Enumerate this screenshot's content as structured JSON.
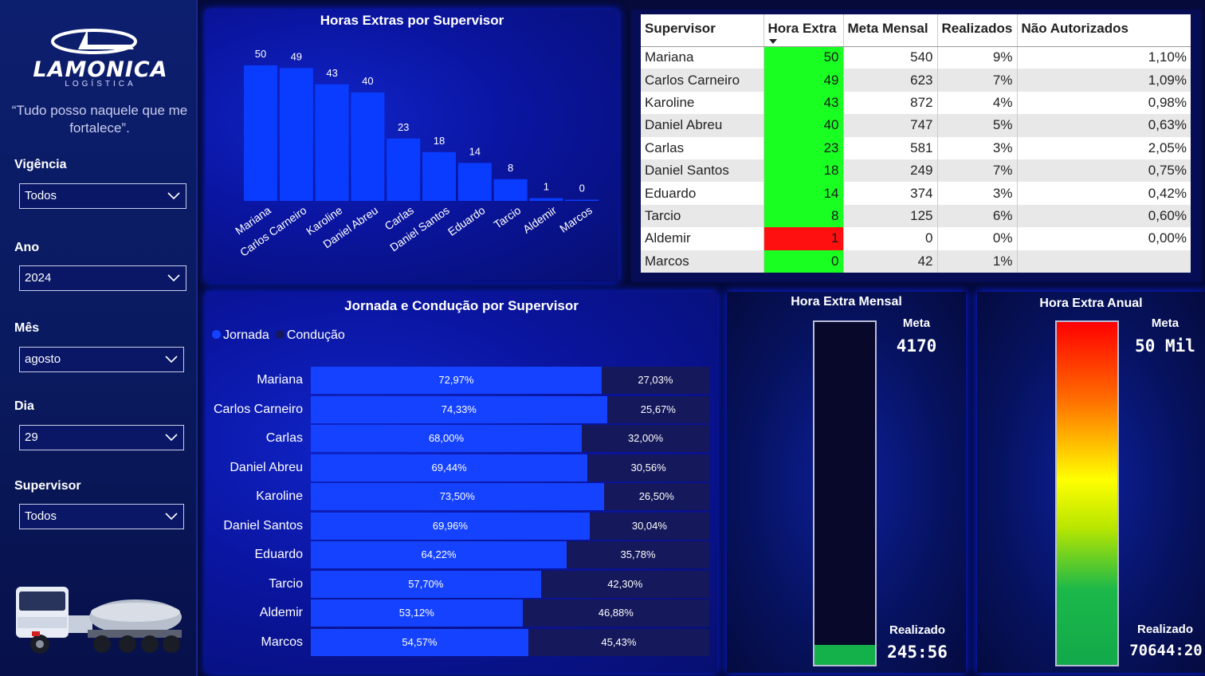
{
  "brand": {
    "name": "LAMONICA",
    "subtitle": "LOGÍSTICA",
    "motto": "“Tudo posso naquele que me fortalece”."
  },
  "filters": [
    {
      "label": "Vigência",
      "value": "Todos"
    },
    {
      "label": "Ano",
      "value": "2024"
    },
    {
      "label": "Mês",
      "value": "agosto"
    },
    {
      "label": "Dia",
      "value": "29"
    },
    {
      "label": "Supervisor",
      "value": "Todos"
    }
  ],
  "bar_chart_title": "Horas Extras por Supervisor",
  "table": {
    "headers": [
      "Supervisor",
      "Hora Extra",
      "Meta Mensal",
      "Realizados",
      "Não Autorizados"
    ],
    "rows": [
      {
        "supervisor": "Mariana",
        "hora_extra": "50",
        "meta": "540",
        "realizados": "9%",
        "nao_aut": "1,10%",
        "status": "green"
      },
      {
        "supervisor": "Carlos Carneiro",
        "hora_extra": "49",
        "meta": "623",
        "realizados": "7%",
        "nao_aut": "1,09%",
        "status": "green"
      },
      {
        "supervisor": "Karoline",
        "hora_extra": "43",
        "meta": "872",
        "realizados": "4%",
        "nao_aut": "0,98%",
        "status": "green"
      },
      {
        "supervisor": "Daniel Abreu",
        "hora_extra": "40",
        "meta": "747",
        "realizados": "5%",
        "nao_aut": "0,63%",
        "status": "green"
      },
      {
        "supervisor": "Carlas",
        "hora_extra": "23",
        "meta": "581",
        "realizados": "3%",
        "nao_aut": "2,05%",
        "status": "green"
      },
      {
        "supervisor": "Daniel Santos",
        "hora_extra": "18",
        "meta": "249",
        "realizados": "7%",
        "nao_aut": "0,75%",
        "status": "green"
      },
      {
        "supervisor": "Eduardo",
        "hora_extra": "14",
        "meta": "374",
        "realizados": "3%",
        "nao_aut": "0,42%",
        "status": "green"
      },
      {
        "supervisor": "Tarcio",
        "hora_extra": "8",
        "meta": "125",
        "realizados": "6%",
        "nao_aut": "0,60%",
        "status": "green"
      },
      {
        "supervisor": "Aldemir",
        "hora_extra": "1",
        "meta": "0",
        "realizados": "0%",
        "nao_aut": "0,00%",
        "status": "red"
      },
      {
        "supervisor": "Marcos",
        "hora_extra": "0",
        "meta": "42",
        "realizados": "1%",
        "nao_aut": "",
        "status": "green"
      }
    ]
  },
  "jornada": {
    "title": "Jornada e Condução por Supervisor",
    "legend": [
      "Jornada",
      "Condução"
    ],
    "legend_colors": [
      "#1442ff",
      "#15185a"
    ],
    "rows": [
      {
        "name": "Mariana",
        "jornada": 72.97,
        "jornada_label": "72,97%",
        "conducao_label": "27,03%"
      },
      {
        "name": "Carlos Carneiro",
        "jornada": 74.33,
        "jornada_label": "74,33%",
        "conducao_label": "25,67%"
      },
      {
        "name": "Carlas",
        "jornada": 68.0,
        "jornada_label": "68,00%",
        "conducao_label": "32,00%"
      },
      {
        "name": "Daniel Abreu",
        "jornada": 69.44,
        "jornada_label": "69,44%",
        "conducao_label": "30,56%"
      },
      {
        "name": "Karoline",
        "jornada": 73.5,
        "jornada_label": "73,50%",
        "conducao_label": "26,50%"
      },
      {
        "name": "Daniel Santos",
        "jornada": 69.96,
        "jornada_label": "69,96%",
        "conducao_label": "30,04%"
      },
      {
        "name": "Eduardo",
        "jornada": 64.22,
        "jornada_label": "64,22%",
        "conducao_label": "35,78%"
      },
      {
        "name": "Tarcio",
        "jornada": 57.7,
        "jornada_label": "57,70%",
        "conducao_label": "42,30%"
      },
      {
        "name": "Aldemir",
        "jornada": 53.12,
        "jornada_label": "53,12%",
        "conducao_label": "46,88%"
      },
      {
        "name": "Marcos",
        "jornada": 54.57,
        "jornada_label": "54,57%",
        "conducao_label": "45,43%"
      }
    ]
  },
  "gauge_mensal": {
    "title": "Hora Extra Mensal",
    "meta_label": "Meta",
    "meta_value": "4170",
    "realizado_label": "Realizado",
    "realizado_value": "245:56",
    "fill_fraction": 0.059,
    "fill_color": "#14b04a"
  },
  "gauge_anual": {
    "title": "Hora Extra Anual",
    "meta_label": "Meta",
    "meta_value": "50 Mil",
    "realizado_label": "Realizado",
    "realizado_value": "70644:20",
    "fill_fraction": 1.0
  },
  "chart_data": {
    "type": "bar",
    "title": "Horas Extras por Supervisor",
    "categories": [
      "Mariana",
      "Carlos Carneiro",
      "Karoline",
      "Daniel Abreu",
      "Carlas",
      "Daniel Santos",
      "Eduardo",
      "Tarcio",
      "Aldemir",
      "Marcos"
    ],
    "values": [
      50,
      49,
      43,
      40,
      23,
      18,
      14,
      8,
      1,
      0
    ],
    "xlabel": "",
    "ylabel": "",
    "ylim": [
      0,
      50
    ],
    "color": "#0a3cff",
    "grid": false
  }
}
